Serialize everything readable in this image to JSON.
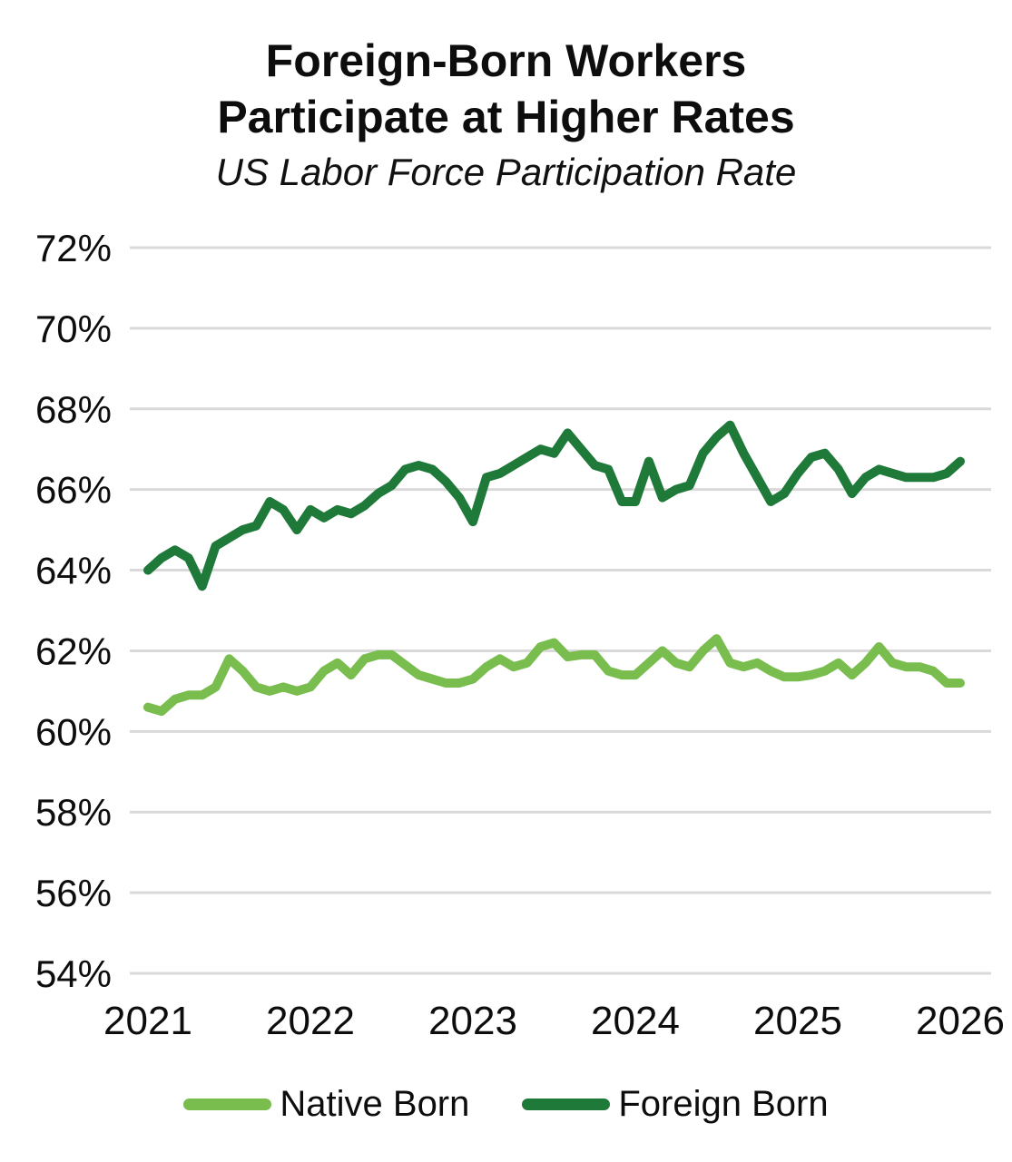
{
  "header": {
    "title_line1": "Foreign-Born Workers",
    "title_line2": "Participate at Higher Rates",
    "subtitle": "US  Labor Force Participation Rate"
  },
  "chart_data": {
    "type": "line",
    "title": "Foreign-Born Workers Participate at Higher Rates",
    "subtitle": "US Labor Force Participation Rate",
    "unit": "%",
    "ylim": [
      54,
      72
    ],
    "grid": "horizontal",
    "legend_position": "bottom",
    "ytick_labels": [
      "72%",
      "70%",
      "68%",
      "66%",
      "64%",
      "62%",
      "60%",
      "58%",
      "56%",
      "54%"
    ],
    "ytick_values": [
      72,
      70,
      68,
      66,
      64,
      62,
      60,
      58,
      56,
      54
    ],
    "xtick_labels": [
      "2021",
      "2022",
      "2023",
      "2024",
      "2025",
      "2026"
    ],
    "x_months": [
      "2021-01",
      "2021-02",
      "2021-03",
      "2021-04",
      "2021-05",
      "2021-06",
      "2021-07",
      "2021-08",
      "2021-09",
      "2021-10",
      "2021-11",
      "2021-12",
      "2022-01",
      "2022-02",
      "2022-03",
      "2022-04",
      "2022-05",
      "2022-06",
      "2022-07",
      "2022-08",
      "2022-09",
      "2022-10",
      "2022-11",
      "2022-12",
      "2023-01",
      "2023-02",
      "2023-03",
      "2023-04",
      "2023-05",
      "2023-06",
      "2023-07",
      "2023-08",
      "2023-09",
      "2023-10",
      "2023-11",
      "2023-12",
      "2024-01",
      "2024-02",
      "2024-03",
      "2024-04",
      "2024-05",
      "2024-06",
      "2024-07",
      "2024-08",
      "2024-09",
      "2024-10",
      "2024-11",
      "2024-12",
      "2025-01",
      "2025-02",
      "2025-03",
      "2025-04",
      "2025-05",
      "2025-06",
      "2025-07",
      "2025-08",
      "2025-09",
      "2025-10",
      "2025-11",
      "2025-12",
      "2026-01"
    ],
    "series": [
      {
        "name": "Native Born",
        "color": "#79bd4f",
        "values": [
          60.6,
          60.5,
          60.8,
          60.9,
          60.9,
          61.1,
          61.8,
          61.5,
          61.1,
          61.0,
          61.1,
          61.0,
          61.1,
          61.5,
          61.7,
          61.4,
          61.8,
          61.9,
          61.9,
          61.65,
          61.4,
          61.3,
          61.2,
          61.2,
          61.3,
          61.6,
          61.8,
          61.6,
          61.7,
          62.1,
          62.2,
          61.85,
          61.9,
          61.9,
          61.5,
          61.4,
          61.4,
          61.7,
          62.0,
          61.7,
          61.6,
          62.0,
          62.3,
          61.7,
          61.6,
          61.7,
          61.5,
          61.35,
          61.35,
          61.4,
          61.5,
          61.7,
          61.4,
          61.7,
          62.1,
          61.7,
          61.6,
          61.6,
          61.5,
          61.2,
          61.2
        ]
      },
      {
        "name": "Foreign Born",
        "color": "#1f7a3a",
        "values": [
          64.0,
          64.3,
          64.5,
          64.3,
          63.6,
          64.6,
          64.8,
          65.0,
          65.1,
          65.7,
          65.5,
          65.0,
          65.5,
          65.3,
          65.5,
          65.4,
          65.6,
          65.9,
          66.1,
          66.5,
          66.6,
          66.5,
          66.2,
          65.8,
          65.2,
          66.3,
          66.4,
          66.6,
          66.8,
          67.0,
          66.9,
          67.4,
          67.0,
          66.6,
          66.5,
          65.7,
          65.7,
          66.7,
          65.8,
          66.0,
          66.1,
          66.9,
          67.3,
          67.6,
          66.9,
          66.3,
          65.7,
          65.9,
          66.4,
          66.8,
          66.9,
          66.5,
          65.9,
          66.3,
          66.5,
          66.4,
          66.3,
          66.3,
          66.3,
          66.4,
          66.7
        ]
      }
    ],
    "style": {
      "gridline_color": "#d9d9d9",
      "axis_text_color": "#0d0d0d",
      "line_width": 10
    }
  }
}
